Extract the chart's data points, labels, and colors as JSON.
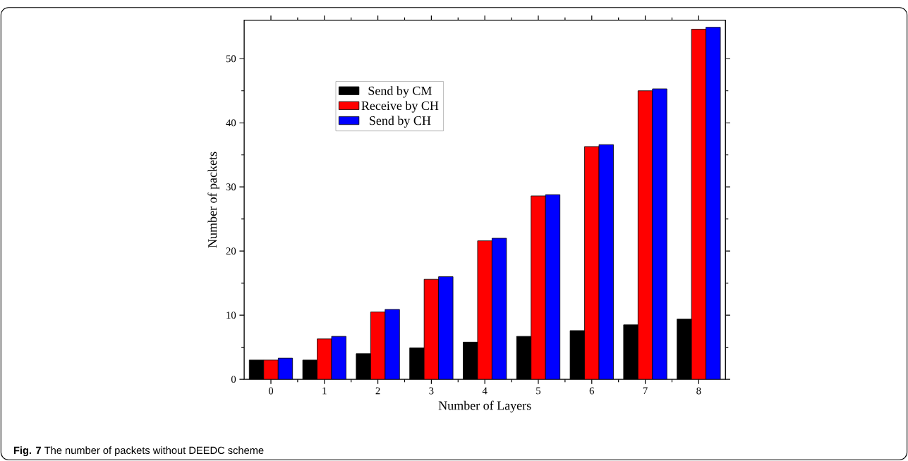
{
  "chart_data": {
    "type": "bar",
    "xlabel": "Number of Layers",
    "ylabel": "Number of packets",
    "annotations": [
      "**Fig. 7** The number of packets without DEEDC scheme"
    ],
    "categories": [
      "0",
      "1",
      "2",
      "3",
      "4",
      "5",
      "6",
      "7",
      "8"
    ],
    "series": [
      {
        "name": "Send by CM",
        "color": "#000000",
        "values": [
          3.0,
          3.0,
          4.0,
          4.9,
          5.8,
          6.7,
          7.6,
          8.5,
          9.4
        ]
      },
      {
        "name": "Receive by CH",
        "color": "#ff0000",
        "values": [
          3.0,
          6.3,
          10.5,
          15.6,
          21.6,
          28.6,
          36.3,
          45.0,
          54.6
        ]
      },
      {
        "name": "Send by CH",
        "color": "#0000ff",
        "values": [
          3.3,
          6.7,
          10.9,
          16.0,
          22.0,
          28.8,
          36.6,
          45.3,
          54.9
        ]
      }
    ],
    "ylim": [
      0,
      56
    ],
    "yticks": [
      0,
      10,
      20,
      30,
      40,
      50
    ],
    "legend": "top left"
  }
}
